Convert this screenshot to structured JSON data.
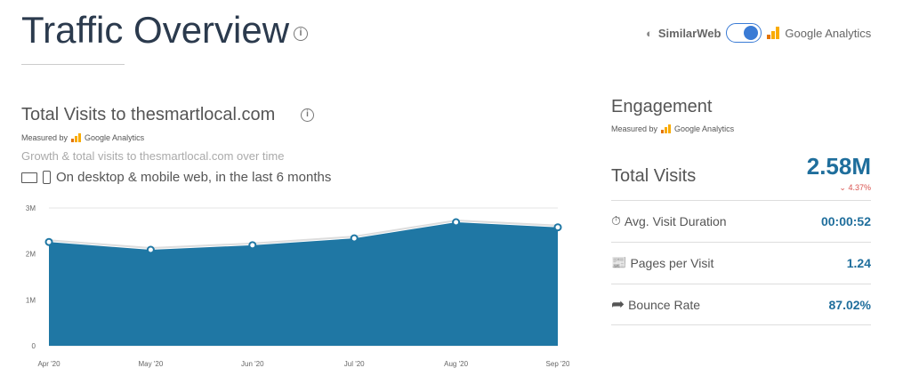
{
  "header": {
    "title": "Traffic Overview",
    "info_icon": "info-icon"
  },
  "source_toggle": {
    "left_label": "SimilarWeb",
    "right_label": "Google Analytics",
    "selected": "Google Analytics"
  },
  "visits": {
    "title": "Total Visits to thesmartlocal.com",
    "measured_by": "Measured by",
    "provider": "Google Analytics",
    "subtitle": "Growth & total visits to thesmartlocal.com over time",
    "scope": "On desktop & mobile web, in the last 6 months"
  },
  "engagement": {
    "title": "Engagement",
    "measured_by": "Measured by",
    "provider": "Google Analytics",
    "total_visits": {
      "label": "Total Visits",
      "value": "2.58M",
      "change": "4.37%",
      "direction": "down"
    },
    "metrics": [
      {
        "icon": "stopwatch-icon",
        "label": "Avg. Visit Duration",
        "value": "00:00:52"
      },
      {
        "icon": "pages-icon",
        "label": "Pages per Visit",
        "value": "1.24"
      },
      {
        "icon": "bounce-arrow-icon",
        "label": "Bounce Rate",
        "value": "87.02%"
      }
    ]
  },
  "colors": {
    "accent": "#1f6e9c",
    "area": "#1f77a4",
    "negative": "#d9534f"
  },
  "chart_data": {
    "type": "area",
    "categories": [
      "Apr '20",
      "May '20",
      "Jun '20",
      "Jul '20",
      "Aug '20",
      "Sep '20"
    ],
    "series": [
      {
        "name": "Total Visits",
        "values": [
          2.26,
          2.09,
          2.19,
          2.34,
          2.69,
          2.58
        ]
      }
    ],
    "yticks": [
      "0",
      "1M",
      "2M",
      "3M"
    ],
    "ylim": [
      0,
      3
    ],
    "unit": "M",
    "grid": true
  }
}
